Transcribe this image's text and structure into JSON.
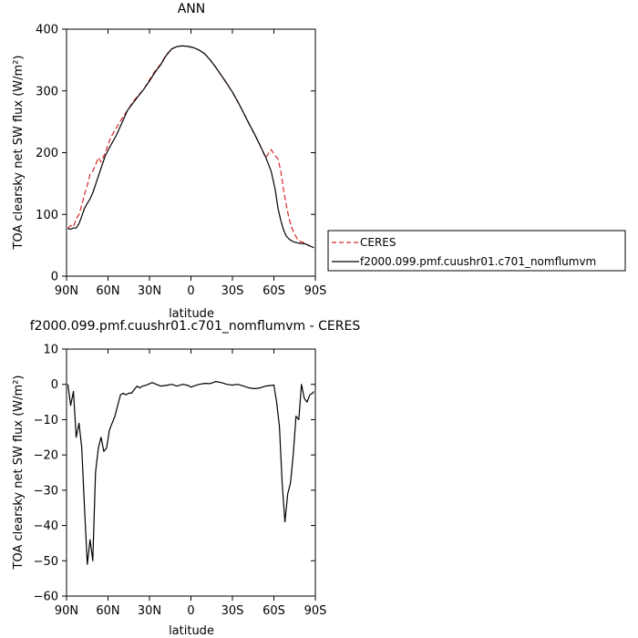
{
  "colors": {
    "ceres": "#d62728",
    "model": "#000000",
    "axis": "#000000"
  },
  "chart_data": [
    {
      "type": "line",
      "title": "ANN",
      "xlabel": "latitude",
      "ylabel": "TOA clearsky net SW flux (W/m²)",
      "xlim": [
        90,
        -90
      ],
      "ylim": [
        0,
        400
      ],
      "x_ticks": [
        90,
        60,
        30,
        0,
        -30,
        -60,
        -90
      ],
      "x_tick_labels": [
        "90N",
        "60N",
        "30N",
        "0",
        "30S",
        "60S",
        "90S"
      ],
      "y_ticks": [
        0,
        100,
        200,
        300,
        400
      ],
      "y_tick_labels": [
        "0",
        "100",
        "200",
        "300",
        "400"
      ],
      "legend": {
        "position": "right",
        "entries": [
          {
            "label": "CERES",
            "style": "dashed",
            "color": "#d62728"
          },
          {
            "label": "f2000.099.pmf.cuushr01.c701_nomflumvm",
            "style": "solid",
            "color": "#000000"
          }
        ]
      },
      "series": [
        {
          "name": "CERES",
          "style": "dashed",
          "color": "#d62728",
          "x": [
            89,
            87,
            85,
            83,
            81,
            79,
            77,
            75,
            73,
            71,
            69,
            67,
            65,
            62,
            58,
            54,
            50,
            46,
            42,
            38,
            34,
            30,
            26,
            22,
            18,
            14,
            10,
            6,
            2,
            0,
            -2,
            -6,
            -10,
            -14,
            -18,
            -22,
            -26,
            -30,
            -34,
            -38,
            -42,
            -46,
            -50,
            -54,
            -58,
            -61,
            -63,
            -65,
            -67,
            -69,
            -71,
            -73,
            -75,
            -77,
            -79,
            -81,
            -83,
            -85,
            -87,
            -89
          ],
          "y": [
            77,
            82,
            80,
            93,
            100,
            115,
            132,
            147,
            165,
            170,
            180,
            192,
            185,
            200,
            225,
            240,
            255,
            268,
            282,
            293,
            303,
            318,
            332,
            343,
            358,
            368,
            372,
            373,
            372,
            371,
            370,
            366,
            360,
            350,
            338,
            325,
            312,
            298,
            282,
            265,
            247,
            230,
            212,
            192,
            205,
            195,
            190,
            170,
            140,
            115,
            93,
            78,
            68,
            60,
            56,
            55,
            52,
            50,
            48,
            46
          ]
        },
        {
          "name": "f2000.099.pmf.cuushr01.c701_nomflumvm",
          "style": "solid",
          "color": "#000000",
          "x": [
            89,
            87,
            85,
            83,
            81,
            79,
            77,
            75,
            73,
            71,
            69,
            67,
            65,
            62,
            58,
            54,
            50,
            46,
            42,
            38,
            34,
            30,
            26,
            22,
            18,
            14,
            10,
            6,
            2,
            0,
            -2,
            -6,
            -10,
            -14,
            -18,
            -22,
            -26,
            -30,
            -34,
            -38,
            -42,
            -46,
            -50,
            -54,
            -58,
            -61,
            -63,
            -65,
            -67,
            -69,
            -71,
            -73,
            -75,
            -77,
            -79,
            -81,
            -83,
            -85,
            -87,
            -89
          ],
          "y": [
            77,
            76,
            78,
            78,
            85,
            97,
            110,
            118,
            125,
            135,
            148,
            162,
            175,
            195,
            212,
            228,
            248,
            268,
            280,
            292,
            303,
            316,
            330,
            342,
            357,
            368,
            372,
            373,
            372,
            371,
            370,
            366,
            360,
            350,
            338,
            325,
            312,
            298,
            282,
            265,
            247,
            230,
            212,
            193,
            170,
            140,
            110,
            90,
            75,
            65,
            60,
            57,
            55,
            54,
            53,
            53,
            52,
            50,
            48,
            46
          ]
        }
      ]
    },
    {
      "type": "line",
      "title": "f2000.099.pmf.cuushr01.c701_nomflumvm - CERES",
      "xlabel": "latitude",
      "ylabel": "TOA clearsky net SW flux (W/m²)",
      "xlim": [
        90,
        -90
      ],
      "ylim": [
        -60,
        10
      ],
      "x_ticks": [
        90,
        60,
        30,
        0,
        -30,
        -60,
        -90
      ],
      "x_tick_labels": [
        "90N",
        "60N",
        "30N",
        "0",
        "30S",
        "60S",
        "90S"
      ],
      "y_ticks": [
        10,
        0,
        -10,
        -20,
        -30,
        -40,
        -50,
        -60
      ],
      "y_tick_labels": [
        "10",
        "0",
        "−10",
        "−20",
        "−30",
        "−40",
        "−50",
        "−60"
      ],
      "series": [
        {
          "name": "f2000.099.pmf.cuushr01.c701_nomflumvm - CERES",
          "style": "solid",
          "color": "#000000",
          "x": [
            89,
            87,
            85,
            83,
            81,
            79,
            77,
            75,
            73,
            71,
            69,
            67,
            65,
            63,
            61,
            59,
            57,
            55,
            53,
            51,
            49,
            47,
            45,
            43,
            41,
            39,
            37,
            35,
            33,
            31,
            28,
            25,
            22,
            18,
            14,
            10,
            6,
            2,
            0,
            -2,
            -6,
            -10,
            -14,
            -18,
            -22,
            -26,
            -30,
            -34,
            -38,
            -42,
            -46,
            -50,
            -54,
            -58,
            -60,
            -62,
            -64,
            -66,
            -68,
            -70,
            -72,
            -74,
            -76,
            -78,
            -80,
            -82,
            -84,
            -86,
            -88,
            -89
          ],
          "y": [
            0,
            -6,
            -2,
            -15,
            -11,
            -18,
            -35,
            -51,
            -44,
            -50,
            -25,
            -18,
            -15,
            -19,
            -18,
            -13,
            -11,
            -9,
            -6,
            -3,
            -2.5,
            -3,
            -2.5,
            -2.5,
            -1.5,
            -0.5,
            -1,
            -0.5,
            -0.3,
            0,
            0.5,
            0,
            -0.5,
            -0.3,
            0,
            -0.5,
            0,
            -0.3,
            -0.8,
            -0.5,
            0,
            0.3,
            0.2,
            0.8,
            0.5,
            0,
            -0.2,
            0,
            -0.5,
            -1,
            -1.2,
            -1,
            -0.5,
            -0.3,
            -0.2,
            -5,
            -12,
            -28,
            -39,
            -31,
            -28,
            -20,
            -9,
            -10,
            0,
            -4,
            -5,
            -3,
            -2.5,
            -2
          ]
        }
      ]
    }
  ]
}
